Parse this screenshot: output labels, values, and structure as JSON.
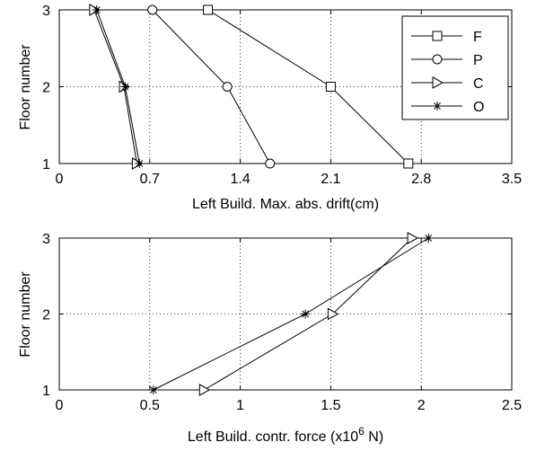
{
  "chart_data": [
    {
      "type": "line",
      "xlabel": "Left Build. Max. abs. drift(cm)",
      "ylabel": "Floor number",
      "xlim": [
        0,
        3.5
      ],
      "ylim": [
        1,
        3
      ],
      "x_ticks": [
        0,
        0.7,
        1.4,
        2.1,
        2.8,
        3.5
      ],
      "x_tick_labels": [
        "0",
        "0.7",
        "1.4",
        "2.1",
        "2.8",
        "3.5"
      ],
      "y_ticks": [
        1,
        2,
        3
      ],
      "y_tick_labels": [
        "1",
        "2",
        "3"
      ],
      "grid": "dotted",
      "legend_position": "top-right",
      "series": [
        {
          "name": "F",
          "marker": "square",
          "x": [
            2.7,
            2.1,
            1.15
          ],
          "y": [
            1,
            2,
            3
          ]
        },
        {
          "name": "P",
          "marker": "circle",
          "x": [
            1.63,
            1.3,
            0.72
          ],
          "y": [
            1,
            2,
            3
          ]
        },
        {
          "name": "C",
          "marker": "triangle-right",
          "x": [
            0.6,
            0.5,
            0.27
          ],
          "y": [
            1,
            2,
            3
          ]
        },
        {
          "name": "O",
          "marker": "star",
          "x": [
            0.62,
            0.51,
            0.29
          ],
          "y": [
            1,
            2,
            3
          ]
        }
      ]
    },
    {
      "type": "line",
      "xlabel": "Left Build. contr. force (x10",
      "xlabel_sup": "6",
      "xlabel_suffix": " N)",
      "ylabel": "Floor number",
      "xlim": [
        0,
        2.5
      ],
      "ylim": [
        1,
        3
      ],
      "x_ticks": [
        0,
        0.5,
        1,
        1.5,
        2,
        2.5
      ],
      "x_tick_labels": [
        "0",
        "0.5",
        "1",
        "1.5",
        "2",
        "2.5"
      ],
      "y_ticks": [
        1,
        2,
        3
      ],
      "y_tick_labels": [
        "1",
        "2",
        "3"
      ],
      "grid": "dotted",
      "series": [
        {
          "marker": "triangle-right",
          "x": [
            0.8,
            1.51,
            1.95
          ],
          "y": [
            1,
            2,
            3
          ]
        },
        {
          "marker": "star",
          "x": [
            0.52,
            1.36,
            2.04
          ],
          "y": [
            1,
            2,
            3
          ]
        }
      ]
    }
  ]
}
